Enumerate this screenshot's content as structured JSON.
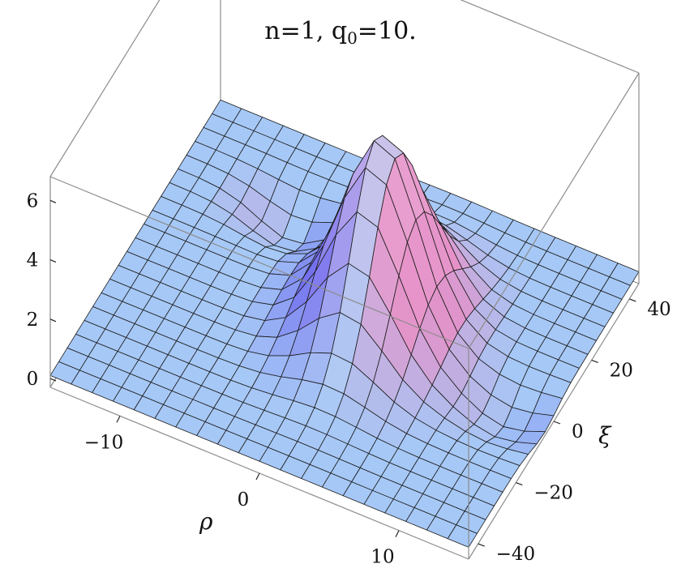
{
  "chart_data": {
    "type": "surface",
    "title": "n=1, q",
    "title_subscript": "0",
    "title_suffix": "=10.",
    "xlabel": "ρ",
    "ylabel": "ξ",
    "zlabel": "",
    "xlim": [
      -15,
      15
    ],
    "ylim": [
      -45,
      45
    ],
    "zlim": [
      -0.3,
      6.8
    ],
    "x_ticks": [
      {
        "value": -10,
        "label": "−10"
      },
      {
        "value": 0,
        "label": "0"
      },
      {
        "value": 10,
        "label": "10"
      }
    ],
    "y_ticks": [
      {
        "value": -40,
        "label": "−40"
      },
      {
        "value": -20,
        "label": "−20"
      },
      {
        "value": 0,
        "label": "0"
      },
      {
        "value": 20,
        "label": "20"
      },
      {
        "value": 40,
        "label": "40"
      }
    ],
    "z_ticks": [
      {
        "value": 0,
        "label": "0"
      },
      {
        "value": 2,
        "label": "2"
      },
      {
        "value": 4,
        "label": "4"
      },
      {
        "value": 6,
        "label": "6"
      }
    ],
    "surface_description": {
      "peak_height": 6.2,
      "peak_location": {
        "rho": 2,
        "xi": 5
      },
      "baseline_height": 0.1,
      "shape": "single ridge-like peak with shallow depressions on either side",
      "mesh_lines": 20
    },
    "colors": {
      "flat_surface": "#a6c8f6",
      "peak_highlight": "#f3d4ea",
      "ridge_pink": "#e48ac4",
      "shadow_blue": "#5b5cef",
      "mesh": "#1a1a1a",
      "box": "#8c8c8c"
    },
    "grid": false,
    "legend": "none"
  }
}
